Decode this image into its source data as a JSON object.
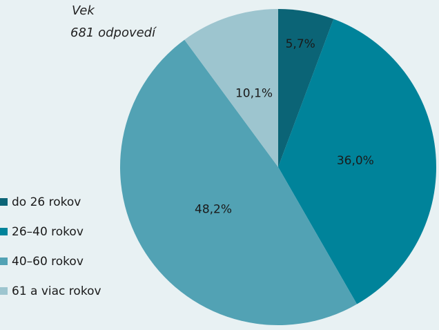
{
  "chart_data": {
    "type": "pie",
    "title": "Vek",
    "subtitle": "681 odpovedí",
    "categories": [
      "do 26 rokov",
      "26–40 rokov",
      "40–60 rokov",
      "61 a viac rokov"
    ],
    "values": [
      5.7,
      36.0,
      48.2,
      10.1
    ],
    "value_labels": [
      "5,7%",
      "36,0%",
      "48,2%",
      "10,1%"
    ],
    "colors": [
      "#0b6476",
      "#00839a",
      "#52a2b4",
      "#9dc5cf"
    ],
    "legend": "left"
  }
}
